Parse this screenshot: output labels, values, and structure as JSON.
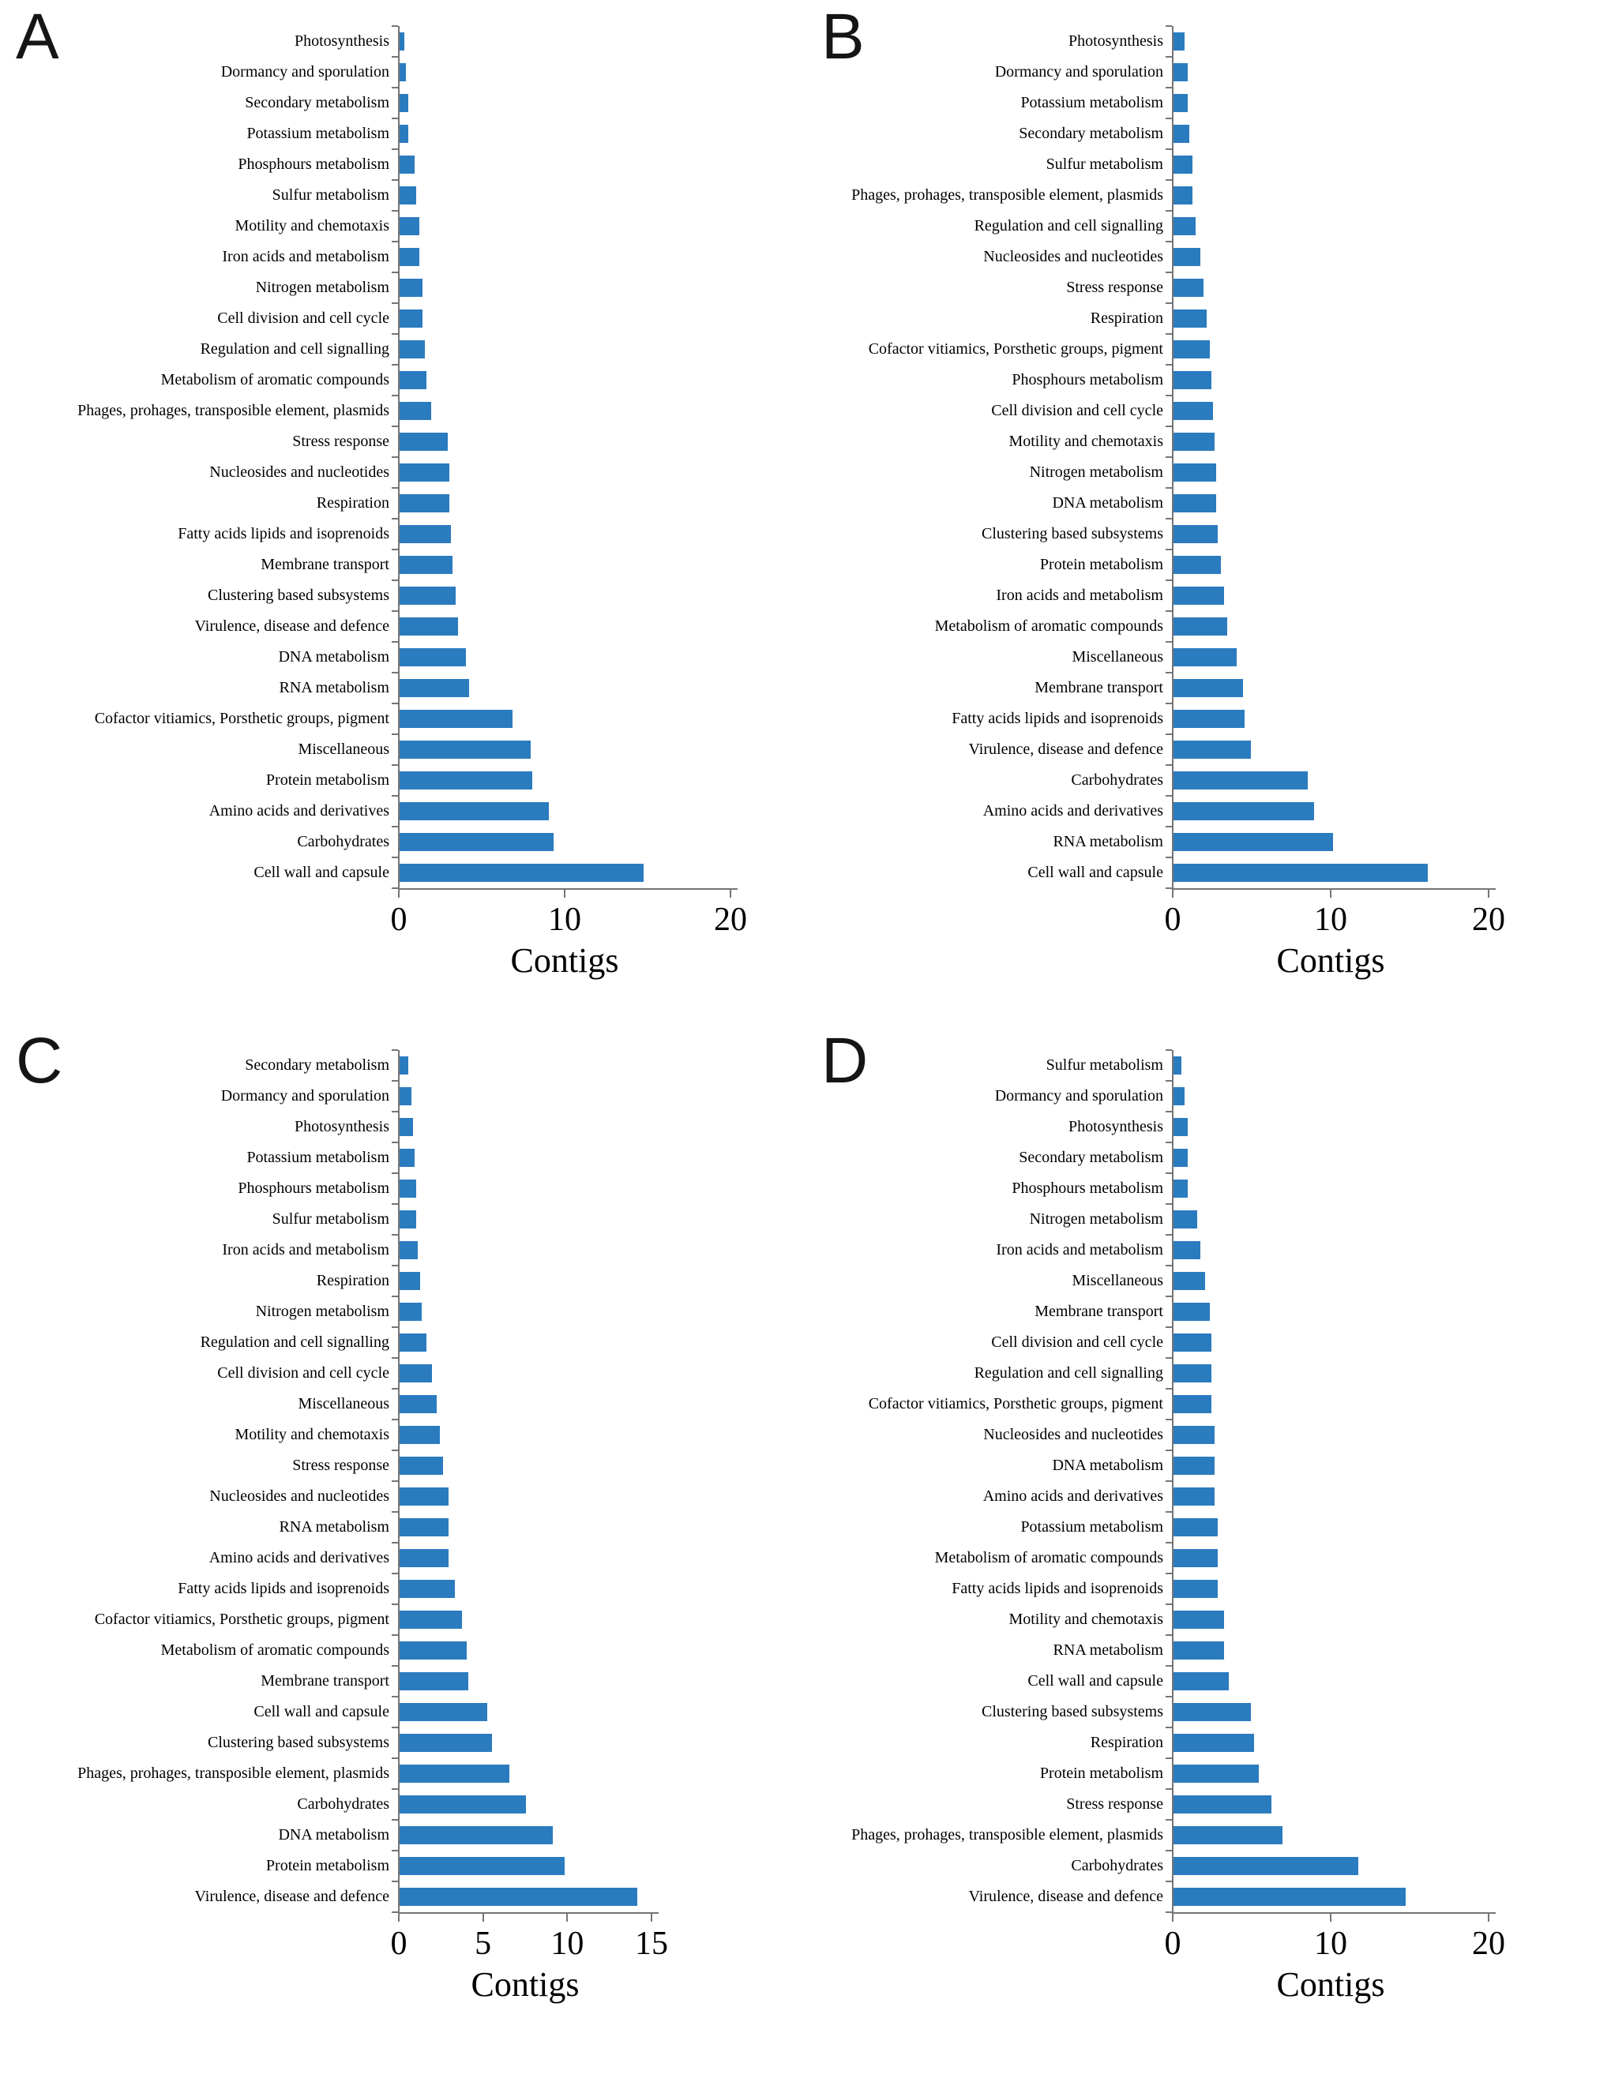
{
  "colors": {
    "bar": "#2b7bbf",
    "axis": "#757575",
    "text": "#000000",
    "background": "#ffffff"
  },
  "chart_data": [
    {
      "panel": "A",
      "type": "bar",
      "orientation": "horizontal",
      "xlabel": "Contigs",
      "xlim": [
        0,
        20
      ],
      "xticks": [
        0,
        10,
        20
      ],
      "grid": false,
      "legend": false,
      "categories": [
        "Photosynthesis",
        "Dormancy and sporulation",
        "Secondary metabolism",
        "Potassium metabolism",
        "Phosphours metabolism",
        "Sulfur metabolism",
        "Motility and chemotaxis",
        "Iron acids and metabolism",
        "Nitrogen metabolism",
        "Cell division and cell cycle",
        "Regulation and cell signalling",
        "Metabolism of aromatic compounds",
        "Phages, prohages, transposible element, plasmids",
        "Stress response",
        "Nucleosides and nucleotides",
        "Respiration",
        "Fatty acids lipids and isoprenoids",
        "Membrane transport",
        "Clustering based subsystems",
        "Virulence, disease and defence",
        "DNA metabolism",
        "RNA metabolism",
        "Cofactor vitiamics, Porsthetic groups, pigment",
        "Miscellaneous",
        "Protein metabolism",
        "Amino acids and derivatives",
        "Carbohydrates",
        "Cell wall and capsule"
      ],
      "values": [
        0.3,
        0.4,
        0.5,
        0.5,
        0.9,
        1.0,
        1.2,
        1.2,
        1.4,
        1.4,
        1.5,
        1.6,
        1.9,
        2.9,
        3.0,
        3.0,
        3.1,
        3.2,
        3.4,
        3.5,
        4.0,
        4.2,
        6.8,
        7.9,
        8.0,
        9.0,
        9.3,
        14.7
      ]
    },
    {
      "panel": "B",
      "type": "bar",
      "orientation": "horizontal",
      "xlabel": "Contigs",
      "xlim": [
        0,
        20
      ],
      "xticks": [
        0,
        10,
        20
      ],
      "grid": false,
      "legend": false,
      "categories": [
        "Photosynthesis",
        "Dormancy and sporulation",
        "Potassium metabolism",
        "Secondary metabolism",
        "Sulfur metabolism",
        "Phages, prohages, transposible element, plasmids",
        "Regulation and cell signalling",
        "Nucleosides and nucleotides",
        "Stress response",
        "Respiration",
        "Cofactor vitiamics, Porsthetic groups, pigment",
        "Phosphours metabolism",
        "Cell division and cell cycle",
        "Motility and chemotaxis",
        "Nitrogen metabolism",
        "DNA metabolism",
        "Clustering based subsystems",
        "Protein metabolism",
        "Iron acids and metabolism",
        "Metabolism of aromatic compounds",
        "Miscellaneous",
        "Membrane transport",
        "Fatty acids lipids and isoprenoids",
        "Virulence, disease and defence",
        "Carbohydrates",
        "Amino acids and derivatives",
        "RNA metabolism",
        "Cell wall and capsule"
      ],
      "values": [
        0.7,
        0.9,
        0.9,
        1.0,
        1.2,
        1.2,
        1.4,
        1.7,
        1.9,
        2.1,
        2.3,
        2.4,
        2.5,
        2.6,
        2.7,
        2.7,
        2.8,
        3.0,
        3.2,
        3.4,
        4.0,
        4.4,
        4.5,
        4.9,
        8.5,
        8.9,
        10.1,
        16.1
      ]
    },
    {
      "panel": "C",
      "type": "bar",
      "orientation": "horizontal",
      "xlabel": "Contigs",
      "xlim": [
        0,
        15
      ],
      "xticks": [
        0,
        5,
        10,
        15
      ],
      "grid": false,
      "legend": false,
      "categories": [
        "Secondary metabolism",
        "Dormancy and sporulation",
        "Photosynthesis",
        "Potassium metabolism",
        "Phosphours metabolism",
        "Sulfur metabolism",
        "Iron acids and metabolism",
        "Respiration",
        "Nitrogen metabolism",
        "Regulation and cell signalling",
        "Cell division and cell cycle",
        "Miscellaneous",
        "Motility and chemotaxis",
        "Stress response",
        "Nucleosides and nucleotides",
        "RNA metabolism",
        "Amino acids and derivatives",
        "Fatty acids lipids and isoprenoids",
        "Cofactor vitiamics, Porsthetic groups, pigment",
        "Metabolism of aromatic compounds",
        "Membrane transport",
        "Cell wall and capsule",
        "Clustering based subsystems",
        "Phages, prohages, transposible element, plasmids",
        "Carbohydrates",
        "DNA metabolism",
        "Protein metabolism",
        "Virulence, disease and defence"
      ],
      "values": [
        0.5,
        0.7,
        0.8,
        0.9,
        1.0,
        1.0,
        1.1,
        1.2,
        1.3,
        1.6,
        1.9,
        2.2,
        2.4,
        2.6,
        2.9,
        2.9,
        2.9,
        3.3,
        3.7,
        4.0,
        4.1,
        5.2,
        5.5,
        6.5,
        7.5,
        9.1,
        9.8,
        14.1
      ]
    },
    {
      "panel": "D",
      "type": "bar",
      "orientation": "horizontal",
      "xlabel": "Contigs",
      "xlim": [
        0,
        20
      ],
      "xticks": [
        0,
        10,
        20
      ],
      "grid": false,
      "legend": false,
      "categories": [
        "Sulfur metabolism",
        "Dormancy and sporulation",
        "Photosynthesis",
        "Secondary metabolism",
        "Phosphours metabolism",
        "Nitrogen metabolism",
        "Iron acids and metabolism",
        "Miscellaneous",
        "Membrane transport",
        "Cell division and cell cycle",
        "Regulation and cell signalling",
        "Cofactor vitiamics, Porsthetic groups, pigment",
        "Nucleosides and nucleotides",
        "DNA metabolism",
        "Amino acids and derivatives",
        "Potassium metabolism",
        "Metabolism of aromatic compounds",
        "Fatty acids lipids and isoprenoids",
        "Motility and chemotaxis",
        "RNA metabolism",
        "Cell wall and capsule",
        "Clustering based subsystems",
        "Respiration",
        "Protein metabolism",
        "Stress response",
        "Phages, prohages, transposible element, plasmids",
        "Carbohydrates",
        "Virulence, disease and defence"
      ],
      "values": [
        0.5,
        0.7,
        0.9,
        0.9,
        0.9,
        1.5,
        1.7,
        2.0,
        2.3,
        2.4,
        2.4,
        2.4,
        2.6,
        2.6,
        2.6,
        2.8,
        2.8,
        2.8,
        3.2,
        3.2,
        3.5,
        4.9,
        5.1,
        5.4,
        6.2,
        6.9,
        11.7,
        14.7
      ]
    }
  ]
}
